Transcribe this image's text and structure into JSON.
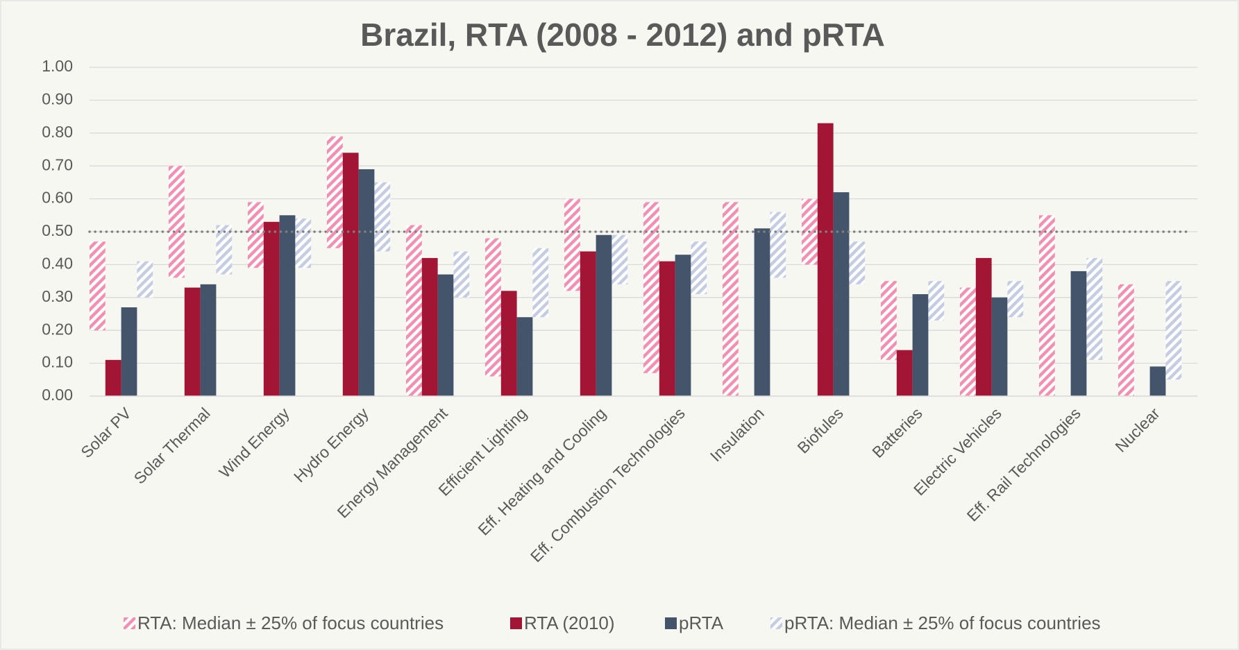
{
  "chart_data": {
    "type": "bar",
    "title": "Brazil, RTA (2008 - 2012) and pRTA",
    "categories": [
      "Solar PV",
      "Solar Thermal",
      "Wind Energy",
      "Hydro Energy",
      "Energy Management",
      "Efficient Lighting",
      "Eff. Heating and Cooling",
      "Eff. Combustion Technologies",
      "Insulation",
      "Biofules",
      "Batteries",
      "Electric Vehicles",
      "Eff. Rail Technologies",
      "Nuclear"
    ],
    "series": [
      {
        "name": "RTA: Median ± 25% of focus countries",
        "type": "range",
        "color": "#f48fb1",
        "low": [
          0.2,
          0.36,
          0.39,
          0.45,
          0.0,
          0.06,
          0.32,
          0.07,
          0.0,
          0.4,
          0.11,
          0.0,
          0.0,
          0.0
        ],
        "high": [
          0.47,
          0.7,
          0.59,
          0.79,
          0.52,
          0.48,
          0.6,
          0.59,
          0.59,
          0.6,
          0.35,
          0.33,
          0.55,
          0.34
        ]
      },
      {
        "name": "RTA (2010)",
        "type": "bar",
        "color": "#a31535",
        "values": [
          0.11,
          0.33,
          0.53,
          0.74,
          0.42,
          0.32,
          0.44,
          0.41,
          null,
          0.83,
          0.14,
          0.42,
          null,
          null
        ]
      },
      {
        "name": "pRTA",
        "type": "bar",
        "color": "#44546a",
        "values": [
          0.27,
          0.34,
          0.55,
          0.69,
          0.37,
          0.24,
          0.49,
          0.43,
          0.51,
          0.62,
          0.31,
          0.3,
          0.38,
          0.09
        ]
      },
      {
        "name": "pRTA: Median ± 25% of focus countries",
        "type": "range",
        "color": "#c5cde3",
        "low": [
          0.3,
          0.37,
          0.39,
          0.44,
          0.3,
          0.24,
          0.34,
          0.31,
          0.36,
          0.34,
          0.23,
          0.24,
          0.11,
          0.05
        ],
        "high": [
          0.41,
          0.52,
          0.54,
          0.65,
          0.44,
          0.45,
          0.49,
          0.47,
          0.56,
          0.47,
          0.35,
          0.35,
          0.42,
          0.35
        ]
      }
    ],
    "reference_line": 0.5,
    "ylim": [
      0,
      1
    ],
    "yticks": [
      {
        "value": 0,
        "label": "0.00"
      },
      {
        "value": 0.1,
        "label": "0.10"
      },
      {
        "value": 0.2,
        "label": "0.20"
      },
      {
        "value": 0.3,
        "label": "0.30"
      },
      {
        "value": 0.4,
        "label": "0.40"
      },
      {
        "value": 0.5,
        "label": "0.50"
      },
      {
        "value": 0.6,
        "label": "0.60"
      },
      {
        "value": 0.7,
        "label": "0.70"
      },
      {
        "value": 0.8,
        "label": "0.80"
      },
      {
        "value": 0.9,
        "label": "0.90"
      },
      {
        "value": 1,
        "label": "1.00"
      }
    ],
    "grid": true,
    "legend": "bottom"
  }
}
